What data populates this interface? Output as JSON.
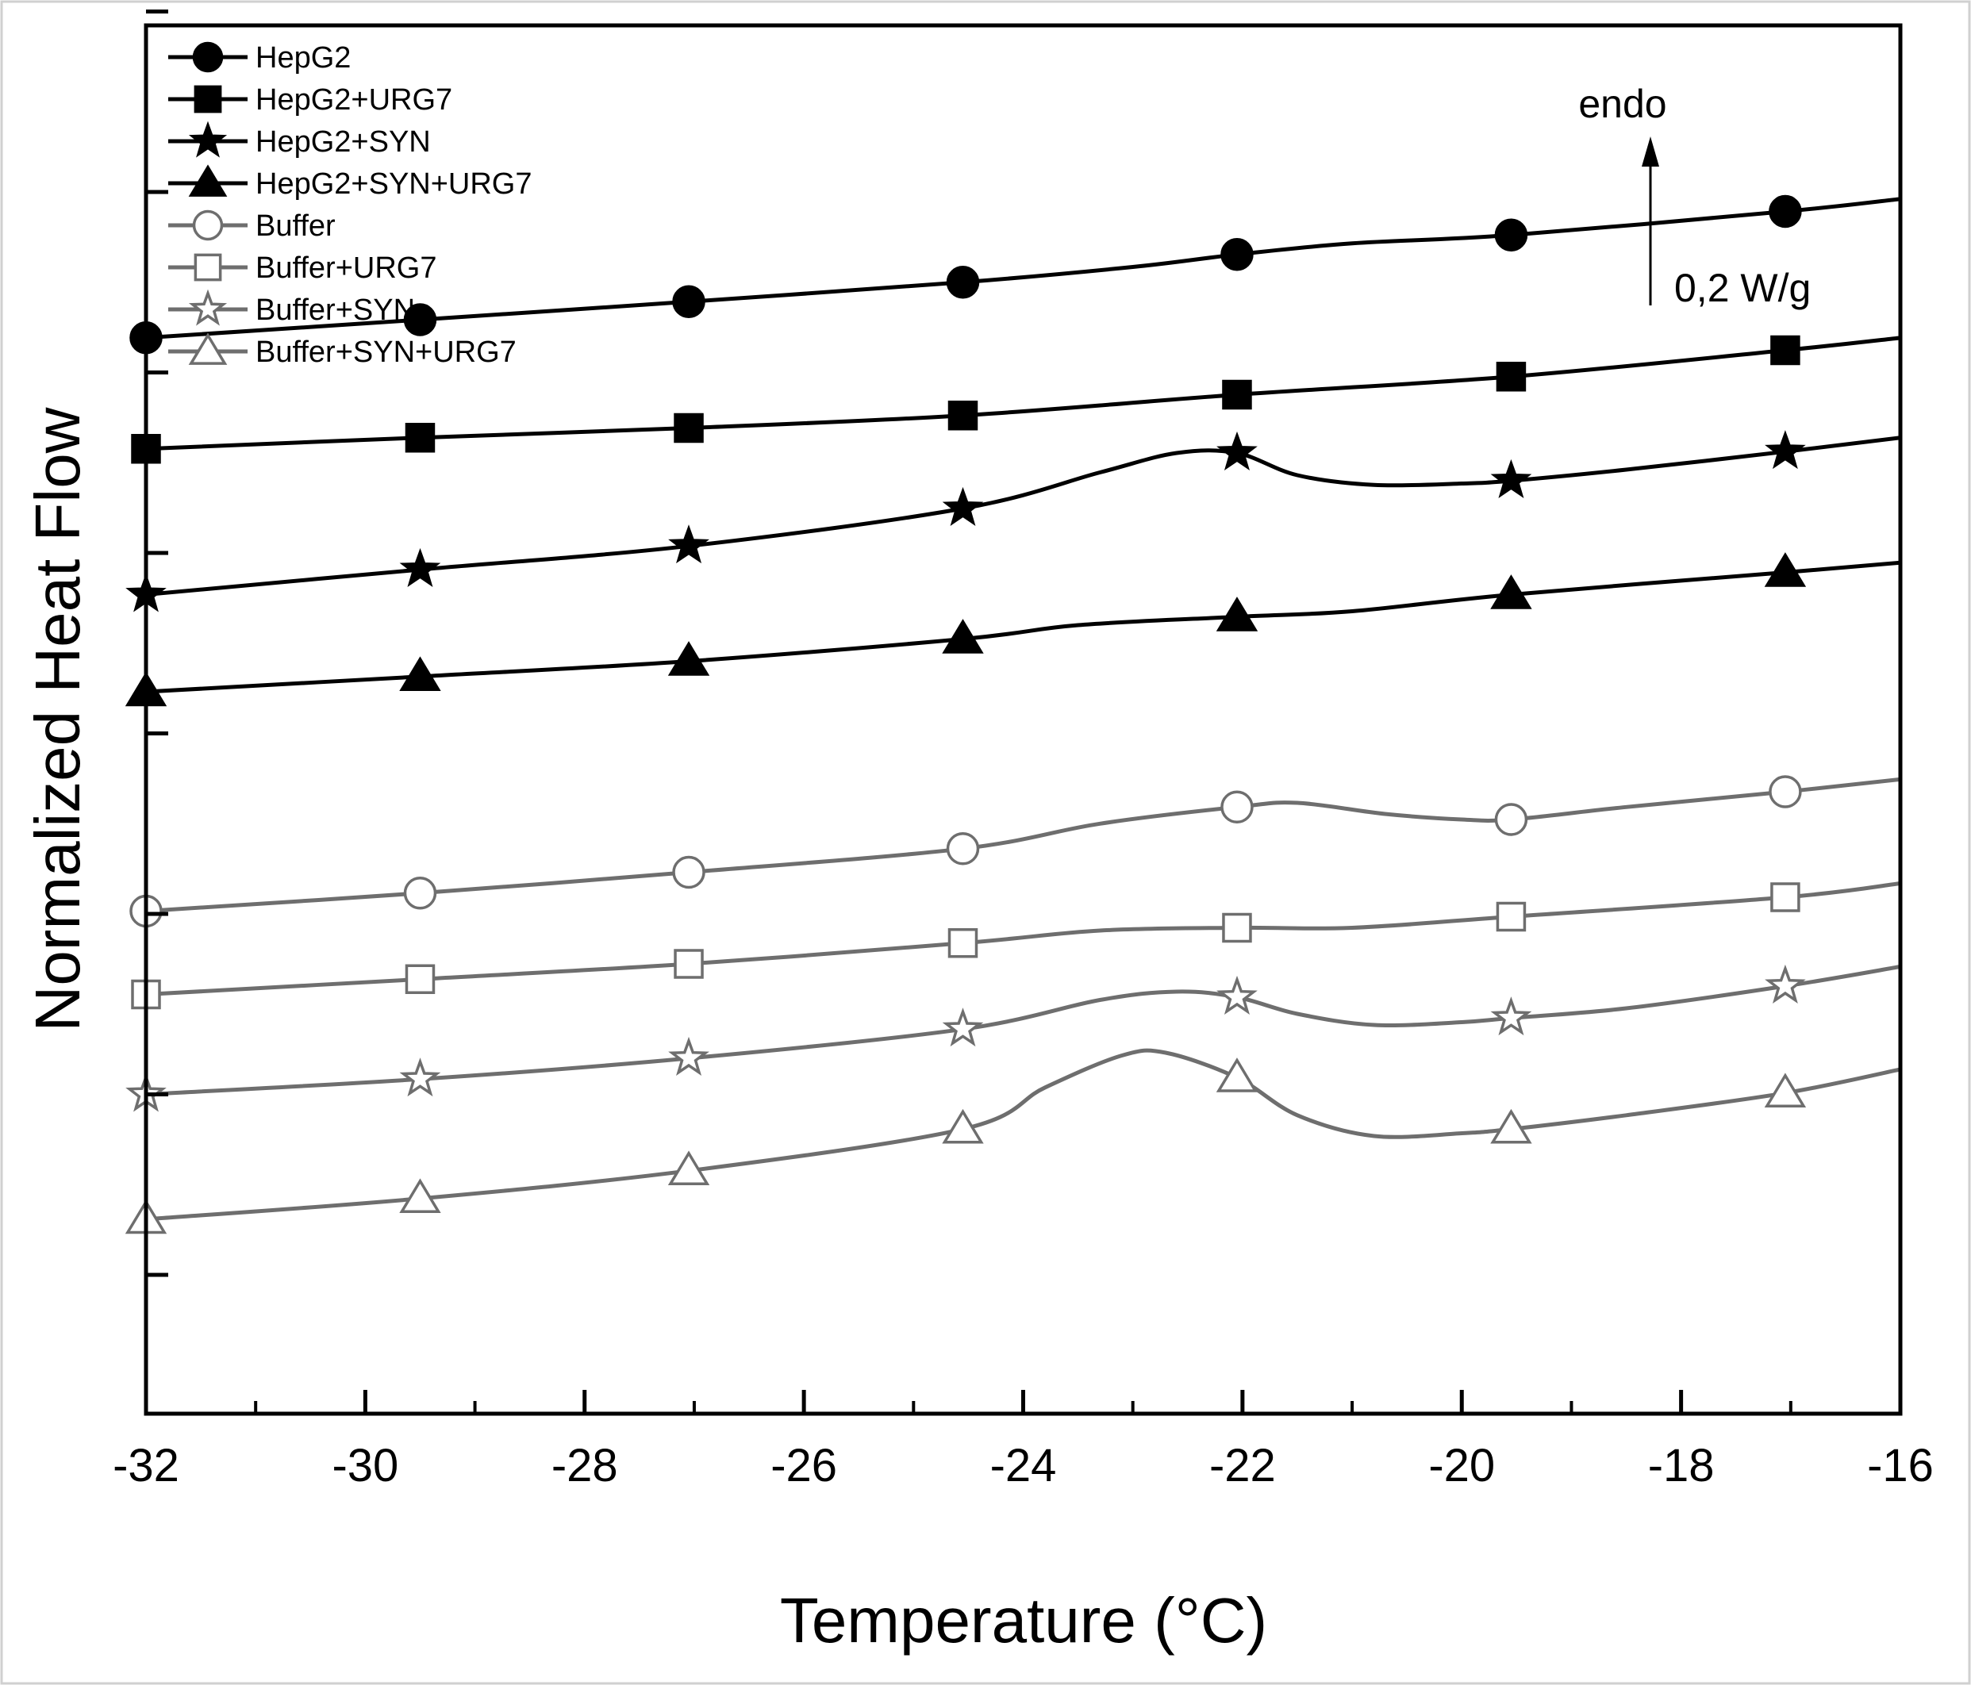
{
  "chart_data": {
    "type": "line",
    "title": "",
    "xlabel": "Temperature (°C)",
    "ylabel": "Normalized Heat Flow",
    "xlim": [
      -32,
      -16
    ],
    "ylim": [
      0,
      10
    ],
    "x_ticks": [
      -32,
      -30,
      -28,
      -26,
      -24,
      -22,
      -20,
      -18,
      -16
    ],
    "x_tick_labels": [
      "-32",
      "-30",
      "-28",
      "-26",
      "-24",
      "-22",
      "-20",
      "-18",
      "-16"
    ],
    "y_ticks_unlabeled": [
      1.0,
      2.3,
      3.6,
      4.9,
      6.2,
      7.5,
      8.8,
      10.1
    ],
    "grid": false,
    "legend_position": "top-left",
    "annotation": {
      "direction_label": "endo",
      "scale_label": "0,2 W/g",
      "scale_value": 0.2,
      "scale_unit": "W/g"
    },
    "marker_x": [
      -32,
      -29.5,
      -27.05,
      -24.55,
      -22.05,
      -19.55,
      -17.05
    ],
    "series": [
      {
        "name": "HepG2",
        "color": "#000000",
        "marker": "circle",
        "filled": true,
        "x": [
          -32,
          -29.5,
          -27.05,
          -24.55,
          -23,
          -22.05,
          -21,
          -19.55,
          -17.05,
          -16
        ],
        "y": [
          7.75,
          7.88,
          8.01,
          8.15,
          8.26,
          8.35,
          8.43,
          8.49,
          8.66,
          8.75
        ]
      },
      {
        "name": "HepG2+URG7",
        "color": "#000000",
        "marker": "square",
        "filled": true,
        "x": [
          -32,
          -29.5,
          -27.05,
          -24.55,
          -22.05,
          -19.55,
          -17.05,
          -16
        ],
        "y": [
          6.95,
          7.03,
          7.1,
          7.19,
          7.34,
          7.47,
          7.66,
          7.75
        ]
      },
      {
        "name": "HepG2+SYN",
        "color": "#000000",
        "marker": "star",
        "filled": true,
        "x": [
          -32,
          -29.5,
          -27.05,
          -24.55,
          -23.3,
          -22.6,
          -22.05,
          -21.5,
          -20.8,
          -20.0,
          -19.55,
          -18.5,
          -17.05,
          -16
        ],
        "y": [
          5.9,
          6.08,
          6.25,
          6.52,
          6.78,
          6.92,
          6.92,
          6.76,
          6.69,
          6.7,
          6.72,
          6.8,
          6.93,
          7.03
        ]
      },
      {
        "name": "HepG2+SYN+URG7",
        "color": "#000000",
        "marker": "triangle",
        "filled": true,
        "x": [
          -32,
          -29.5,
          -27.05,
          -24.55,
          -23.5,
          -22.05,
          -21,
          -19.55,
          -17.05,
          -16
        ],
        "y": [
          5.2,
          5.31,
          5.42,
          5.58,
          5.68,
          5.74,
          5.78,
          5.9,
          6.06,
          6.13
        ]
      },
      {
        "name": "Buffer",
        "color": "#6e6e6e",
        "marker": "circle",
        "filled": false,
        "x": [
          -32,
          -29.5,
          -27.05,
          -24.55,
          -23.3,
          -22.05,
          -21.5,
          -20.7,
          -20.0,
          -19.55,
          -18.5,
          -17.05,
          -16
        ],
        "y": [
          3.62,
          3.75,
          3.9,
          4.07,
          4.25,
          4.37,
          4.4,
          4.32,
          4.28,
          4.28,
          4.37,
          4.48,
          4.57
        ]
      },
      {
        "name": "Buffer+URG7",
        "color": "#6e6e6e",
        "marker": "square",
        "filled": false,
        "x": [
          -32,
          -29.5,
          -27.05,
          -24.55,
          -23.3,
          -22.05,
          -21,
          -19.55,
          -17.05,
          -16
        ],
        "y": [
          3.02,
          3.13,
          3.24,
          3.39,
          3.48,
          3.5,
          3.5,
          3.58,
          3.72,
          3.82
        ]
      },
      {
        "name": "Buffer+SYN",
        "color": "#6e6e6e",
        "marker": "star",
        "filled": false,
        "x": [
          -32,
          -29.5,
          -27.05,
          -24.55,
          -23.3,
          -22.6,
          -22.05,
          -21.5,
          -20.8,
          -20.0,
          -19.55,
          -18.5,
          -17.05,
          -16
        ],
        "y": [
          2.3,
          2.41,
          2.56,
          2.77,
          2.98,
          3.04,
          3.0,
          2.88,
          2.8,
          2.82,
          2.85,
          2.92,
          3.08,
          3.22
        ]
      },
      {
        "name": "Buffer+SYN+URG7",
        "color": "#6e6e6e",
        "marker": "triangle",
        "filled": false,
        "x": [
          -32,
          -29.5,
          -27.05,
          -24.55,
          -23.8,
          -23.1,
          -22.7,
          -22.05,
          -21.5,
          -20.8,
          -20.0,
          -19.55,
          -18.5,
          -17.05,
          -16
        ],
        "y": [
          1.4,
          1.55,
          1.75,
          2.05,
          2.35,
          2.58,
          2.6,
          2.42,
          2.15,
          2.0,
          2.02,
          2.05,
          2.15,
          2.31,
          2.48
        ]
      }
    ]
  }
}
